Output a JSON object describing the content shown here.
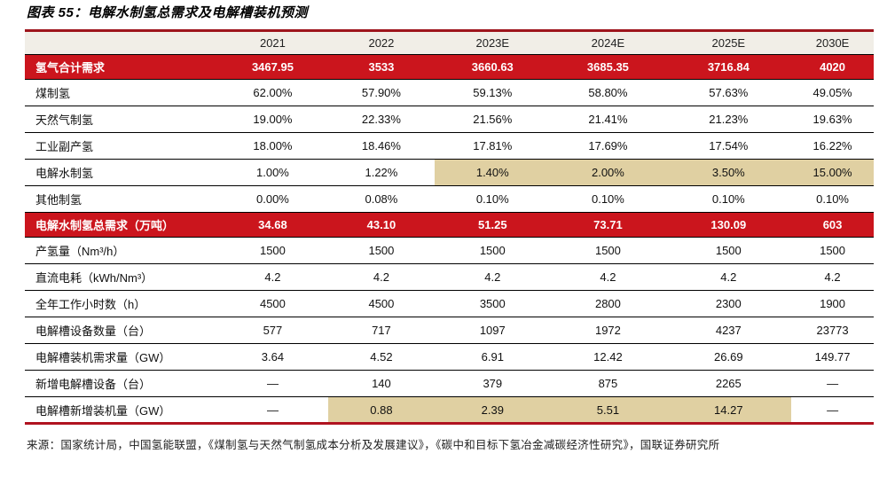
{
  "page": {
    "title": "图表 55：电解水制氢总需求及电解槽装机预测",
    "source": "来源：国家统计局，中国氢能联盟，《煤制氢与天然气制氢成本分析及发展建议》，《碳中和目标下氢冶金减碳经济性研究》，国联证券研究所"
  },
  "colors": {
    "band_red": "#CB151D",
    "top_border_red": "#9E151C",
    "bottom_border_red": "#B01320",
    "header_bg": "#F1EEE7",
    "highlight_tan": "#E0D0A2",
    "row_divider": "#000000"
  },
  "chart_data": {
    "type": "table",
    "title": "电解水制氢总需求及电解槽装机预测",
    "columns": [
      "",
      "2021",
      "2022",
      "2023E",
      "2024E",
      "2025E",
      "2030E"
    ],
    "rows": [
      {
        "label": "氢气合计需求",
        "style": "red",
        "values": [
          "3467.95",
          "3533",
          "3660.63",
          "3685.35",
          "3716.84",
          "4020"
        ]
      },
      {
        "label": "煤制氢",
        "values": [
          "62.00%",
          "57.90%",
          "59.13%",
          "58.80%",
          "57.63%",
          "49.05%"
        ]
      },
      {
        "label": "天然气制氢",
        "values": [
          "19.00%",
          "22.33%",
          "21.56%",
          "21.41%",
          "21.23%",
          "19.63%"
        ]
      },
      {
        "label": "工业副产氢",
        "values": [
          "18.00%",
          "18.46%",
          "17.81%",
          "17.69%",
          "17.54%",
          "16.22%"
        ]
      },
      {
        "label": "电解水制氢",
        "highlight": [
          2,
          3,
          4,
          5
        ],
        "values": [
          "1.00%",
          "1.22%",
          "1.40%",
          "2.00%",
          "3.50%",
          "15.00%"
        ]
      },
      {
        "label": "其他制氢",
        "values": [
          "0.00%",
          "0.08%",
          "0.10%",
          "0.10%",
          "0.10%",
          "0.10%"
        ]
      },
      {
        "label": "电解水制氢总需求（万吨）",
        "style": "red",
        "values": [
          "34.68",
          "43.10",
          "51.25",
          "73.71",
          "130.09",
          "603"
        ]
      },
      {
        "label": "产氢量（Nm³/h）",
        "values": [
          "1500",
          "1500",
          "1500",
          "1500",
          "1500",
          "1500"
        ]
      },
      {
        "label": "直流电耗（kWh/Nm³）",
        "values": [
          "4.2",
          "4.2",
          "4.2",
          "4.2",
          "4.2",
          "4.2"
        ]
      },
      {
        "label": "全年工作小时数（h）",
        "values": [
          "4500",
          "4500",
          "3500",
          "2800",
          "2300",
          "1900"
        ]
      },
      {
        "label": "电解槽设备数量（台）",
        "values": [
          "577",
          "717",
          "1097",
          "1972",
          "4237",
          "23773"
        ]
      },
      {
        "label": "电解槽装机需求量（GW）",
        "values": [
          "3.64",
          "4.52",
          "6.91",
          "12.42",
          "26.69",
          "149.77"
        ]
      },
      {
        "label": "新增电解槽设备（台）",
        "values": [
          "—",
          "140",
          "379",
          "875",
          "2265",
          "—"
        ]
      },
      {
        "label": "电解槽新增装机量（GW）",
        "highlight": [
          1,
          2,
          3,
          4
        ],
        "values": [
          "—",
          "0.88",
          "2.39",
          "5.51",
          "14.27",
          "—"
        ]
      }
    ]
  }
}
